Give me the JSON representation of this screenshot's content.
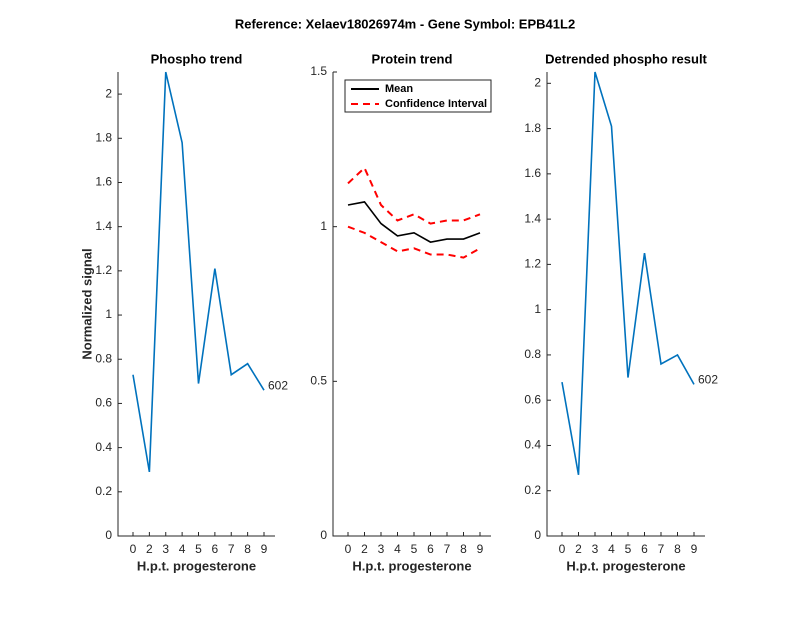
{
  "title": "Reference:  Xelaev18026974m - Gene Symbol:  EPB41L2",
  "chart_data": [
    {
      "type": "line",
      "title": "Phospho trend",
      "xlabel": "H.p.t. progesterone",
      "ylabel": "Normalized signal",
      "categories": [
        "0",
        "2",
        "3",
        "4",
        "5",
        "6",
        "7",
        "8",
        "9"
      ],
      "series": [
        {
          "color": "#0072bd",
          "values": [
            0.73,
            0.29,
            2.1,
            1.78,
            0.69,
            1.21,
            0.73,
            0.78,
            0.66
          ]
        }
      ],
      "annotation": "602",
      "ylim": [
        0,
        2.1
      ],
      "yticks": [
        0,
        0.2,
        0.4,
        0.6,
        0.8,
        1,
        1.2,
        1.4,
        1.6,
        1.8,
        2
      ]
    },
    {
      "type": "band",
      "title": "Protein trend",
      "xlabel": "H.p.t. progesterone",
      "categories": [
        "0",
        "2",
        "3",
        "4",
        "5",
        "6",
        "7",
        "8",
        "9"
      ],
      "series": [
        {
          "name": "Mean",
          "color": "#000000",
          "values": [
            1.07,
            1.08,
            1.01,
            0.97,
            0.98,
            0.95,
            0.96,
            0.96,
            0.98
          ]
        },
        {
          "name": "Confidence Interval",
          "color": "#ff0000",
          "dashed": true,
          "upper": [
            1.14,
            1.19,
            1.07,
            1.02,
            1.04,
            1.01,
            1.02,
            1.02,
            1.04
          ],
          "lower": [
            1.0,
            0.98,
            0.95,
            0.92,
            0.93,
            0.91,
            0.91,
            0.9,
            0.93
          ]
        }
      ],
      "legend": "upper left",
      "ylim": [
        0,
        1.5
      ],
      "yticks": [
        0,
        0.5,
        1,
        1.5
      ]
    },
    {
      "type": "line",
      "title": "Detrended phospho result",
      "xlabel": "H.p.t. progesterone",
      "categories": [
        "0",
        "2",
        "3",
        "4",
        "5",
        "6",
        "7",
        "8",
        "9"
      ],
      "series": [
        {
          "color": "#0072bd",
          "values": [
            0.68,
            0.27,
            2.05,
            1.81,
            0.7,
            1.25,
            0.76,
            0.8,
            0.67
          ]
        }
      ],
      "annotation": "602",
      "ylim": [
        0,
        2.05
      ],
      "yticks": [
        0,
        0.2,
        0.4,
        0.6,
        0.8,
        1,
        1.2,
        1.4,
        1.6,
        1.8,
        2
      ]
    }
  ]
}
